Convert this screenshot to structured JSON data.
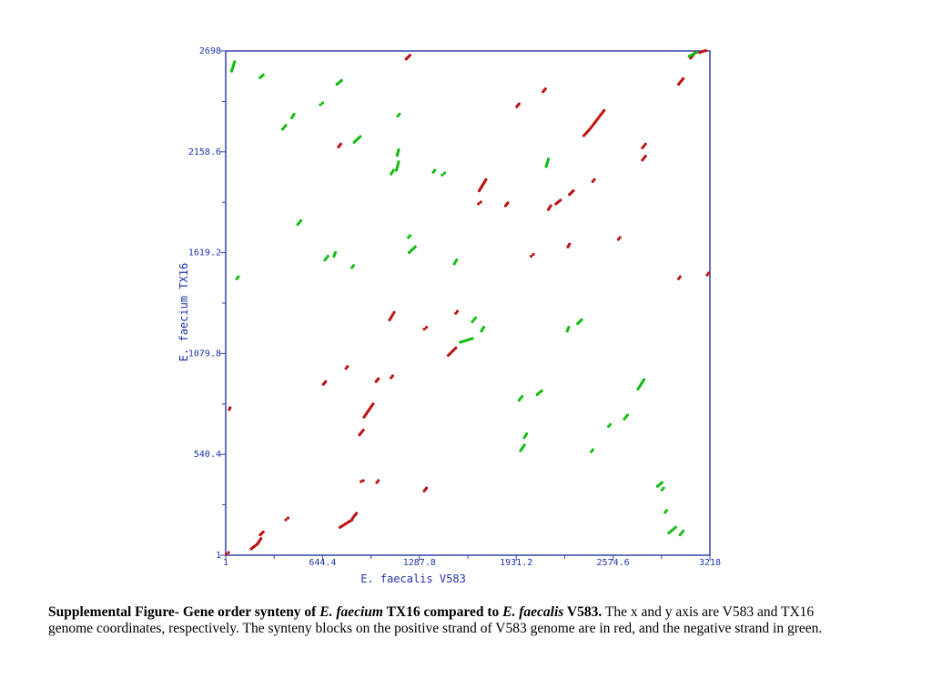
{
  "chart_data": {
    "type": "scatter",
    "title": "",
    "xlabel": "E. faecalis V583",
    "ylabel": "E. faecium TX16",
    "xlim": [
      1,
      3218
    ],
    "ylim": [
      1,
      2698
    ],
    "xticks": [
      1,
      644.4,
      1287.8,
      1931.2,
      2574.6,
      3218
    ],
    "yticks": [
      1,
      540.4,
      1079.8,
      1619.2,
      2158.6,
      2698
    ],
    "xtick_labels": [
      "1",
      "644.4",
      "1287.8",
      "1931.2",
      "2574.6",
      "3218"
    ],
    "ytick_labels": [
      "1",
      "540.4",
      "1079.8",
      "1619.2",
      "2158.6",
      "2698"
    ],
    "grid": false,
    "colors": {
      "axis": "#3344aa",
      "positive": "#bb1111",
      "negative": "#11bb11"
    },
    "series": [
      {
        "color": "#bb1111",
        "segments": [
          [
            [
              5,
              5
            ],
            [
              20,
              15
            ]
          ],
          [
            [
              170,
              35
            ],
            [
              210,
              60
            ]
          ],
          [
            [
              215,
              65
            ],
            [
              235,
              90
            ]
          ],
          [
            [
              230,
              110
            ],
            [
              250,
              125
            ]
          ],
          [
            [
              400,
              190
            ],
            [
              415,
              200
            ]
          ],
          [
            [
              760,
              150
            ],
            [
              840,
              190
            ]
          ],
          [
            [
              845,
              200
            ],
            [
              870,
              225
            ]
          ],
          [
            [
              900,
              395
            ],
            [
              915,
              400
            ]
          ],
          [
            [
              1005,
              390
            ],
            [
              1015,
              400
            ]
          ],
          [
            [
              1320,
              345
            ],
            [
              1335,
              360
            ]
          ],
          [
            [
              890,
              645
            ],
            [
              915,
              670
            ]
          ],
          [
            [
              920,
              740
            ],
            [
              980,
              810
            ]
          ],
          [
            [
              1000,
              930
            ],
            [
              1015,
              945
            ]
          ],
          [
            [
              1100,
              950
            ],
            [
              1110,
              960
            ]
          ],
          [
            [
              650,
              915
            ],
            [
              665,
              930
            ]
          ],
          [
            [
              800,
              1000
            ],
            [
              810,
              1010
            ]
          ],
          [
            [
              1090,
              1260
            ],
            [
              1120,
              1300
            ]
          ],
          [
            [
              1320,
              1210
            ],
            [
              1335,
              1220
            ]
          ],
          [
            [
              1480,
              1070
            ],
            [
              1530,
              1110
            ]
          ],
          [
            [
              1530,
              1295
            ],
            [
              1540,
              1305
            ]
          ],
          [
            [
              1680,
              1880
            ],
            [
              1695,
              1890
            ]
          ],
          [
            [
              1685,
              1950
            ],
            [
              1730,
              2010
            ]
          ],
          [
            [
              1860,
              1870
            ],
            [
              1875,
              1885
            ]
          ],
          [
            [
              1935,
              2400
            ],
            [
              1950,
              2415
            ]
          ],
          [
            [
              2030,
              1600
            ],
            [
              2045,
              1610
            ]
          ],
          [
            [
              2145,
              1850
            ],
            [
              2160,
              1870
            ]
          ],
          [
            [
              2195,
              1880
            ],
            [
              2225,
              1900
            ]
          ],
          [
            [
              2275,
              1650
            ],
            [
              2285,
              1665
            ]
          ],
          [
            [
              2285,
              1930
            ],
            [
              2310,
              1950
            ]
          ],
          [
            [
              2380,
              2245
            ],
            [
              2415,
              2275
            ]
          ],
          [
            [
              2425,
              2285
            ],
            [
              2515,
              2380
            ]
          ],
          [
            [
              2440,
              2000
            ],
            [
              2450,
              2010
            ]
          ],
          [
            [
              2610,
              1690
            ],
            [
              2620,
              1700
            ]
          ],
          [
            [
              2770,
              2115
            ],
            [
              2790,
              2135
            ]
          ],
          [
            [
              2770,
              2180
            ],
            [
              2790,
              2200
            ]
          ],
          [
            [
              2110,
              2480
            ],
            [
              2125,
              2495
            ]
          ],
          [
            [
              1200,
              2655
            ],
            [
              1225,
              2675
            ]
          ],
          [
            [
              750,
              2185
            ],
            [
              765,
              2200
            ]
          ],
          [
            [
              3010,
              2520
            ],
            [
              3040,
              2550
            ]
          ],
          [
            [
              3090,
              2660
            ],
            [
              3120,
              2690
            ]
          ],
          [
            [
              3150,
              2690
            ],
            [
              3190,
              2700
            ]
          ],
          [
            [
              3010,
              1480
            ],
            [
              3020,
              1490
            ]
          ],
          [
            [
              3200,
              1500
            ],
            [
              3210,
              1510
            ]
          ],
          [
            [
              25,
              780
            ],
            [
              30,
              790
            ]
          ]
        ]
      },
      {
        "color": "#11bb11",
        "segments": [
          [
            [
              40,
              2590
            ],
            [
              60,
              2640
            ]
          ],
          [
            [
              230,
              2555
            ],
            [
              250,
              2570
            ]
          ],
          [
            [
              380,
              2280
            ],
            [
              400,
              2300
            ]
          ],
          [
            [
              440,
              2340
            ],
            [
              455,
              2360
            ]
          ],
          [
            [
              480,
              1770
            ],
            [
              500,
              1790
            ]
          ],
          [
            [
              630,
              2410
            ],
            [
              645,
              2420
            ]
          ],
          [
            [
              660,
              1580
            ],
            [
              680,
              1600
            ]
          ],
          [
            [
              720,
              1600
            ],
            [
              730,
              1620
            ]
          ],
          [
            [
              740,
              2520
            ],
            [
              770,
              2540
            ]
          ],
          [
            [
              840,
              1540
            ],
            [
              850,
              1550
            ]
          ],
          [
            [
              855,
              2210
            ],
            [
              895,
              2240
            ]
          ],
          [
            [
              75,
              1480
            ],
            [
              85,
              1490
            ]
          ],
          [
            [
              1100,
              2040
            ],
            [
              1115,
              2060
            ]
          ],
          [
            [
              1135,
              2060
            ],
            [
              1150,
              2105
            ]
          ],
          [
            [
              1140,
              2140
            ],
            [
              1150,
              2170
            ]
          ],
          [
            [
              1145,
              2350
            ],
            [
              1155,
              2360
            ]
          ],
          [
            [
              1215,
              1700
            ],
            [
              1225,
              1710
            ]
          ],
          [
            [
              1220,
              1620
            ],
            [
              1260,
              1650
            ]
          ],
          [
            [
              1380,
              2050
            ],
            [
              1390,
              2060
            ]
          ],
          [
            [
              1440,
              2035
            ],
            [
              1455,
              2045
            ]
          ],
          [
            [
              1520,
              1560
            ],
            [
              1535,
              1580
            ]
          ],
          [
            [
              1560,
              1140
            ],
            [
              1640,
              1160
            ]
          ],
          [
            [
              1640,
              1250
            ],
            [
              1660,
              1270
            ]
          ],
          [
            [
              1700,
              1200
            ],
            [
              1715,
              1220
            ]
          ],
          [
            [
              1950,
              830
            ],
            [
              1970,
              850
            ]
          ],
          [
            [
              1960,
              560
            ],
            [
              1985,
              590
            ]
          ],
          [
            [
              1985,
              630
            ],
            [
              2000,
              650
            ]
          ],
          [
            [
              2070,
              860
            ],
            [
              2100,
              880
            ]
          ],
          [
            [
              2130,
              2080
            ],
            [
              2145,
              2120
            ]
          ],
          [
            [
              2270,
              1200
            ],
            [
              2280,
              1220
            ]
          ],
          [
            [
              2340,
              1240
            ],
            [
              2365,
              1260
            ]
          ],
          [
            [
              2430,
              555
            ],
            [
              2440,
              565
            ]
          ],
          [
            [
              2545,
              690
            ],
            [
              2555,
              700
            ]
          ],
          [
            [
              2650,
              730
            ],
            [
              2670,
              750
            ]
          ],
          [
            [
              2740,
              890
            ],
            [
              2780,
              940
            ]
          ],
          [
            [
              2870,
              370
            ],
            [
              2900,
              390
            ]
          ],
          [
            [
              2900,
              350
            ],
            [
              2910,
              360
            ]
          ],
          [
            [
              2920,
              230
            ],
            [
              2930,
              240
            ]
          ],
          [
            [
              2945,
              120
            ],
            [
              2990,
              150
            ]
          ],
          [
            [
              3020,
              110
            ],
            [
              3040,
              130
            ]
          ],
          [
            [
              3080,
              2670
            ],
            [
              3130,
              2690
            ]
          ]
        ]
      }
    ]
  },
  "caption": {
    "bold_1": "Supplemental Figure- Gene order synteny of ",
    "italic_1": "E. faecium",
    "bold_2": " TX16 compared to ",
    "italic_2": "E. faecalis",
    "bold_3": " V583.",
    "rest": " The x and y axis are V583 and TX16 genome coordinates, respectively. The synteny blocks on the positive strand of V583 genome are in red, and the negative strand in green."
  }
}
